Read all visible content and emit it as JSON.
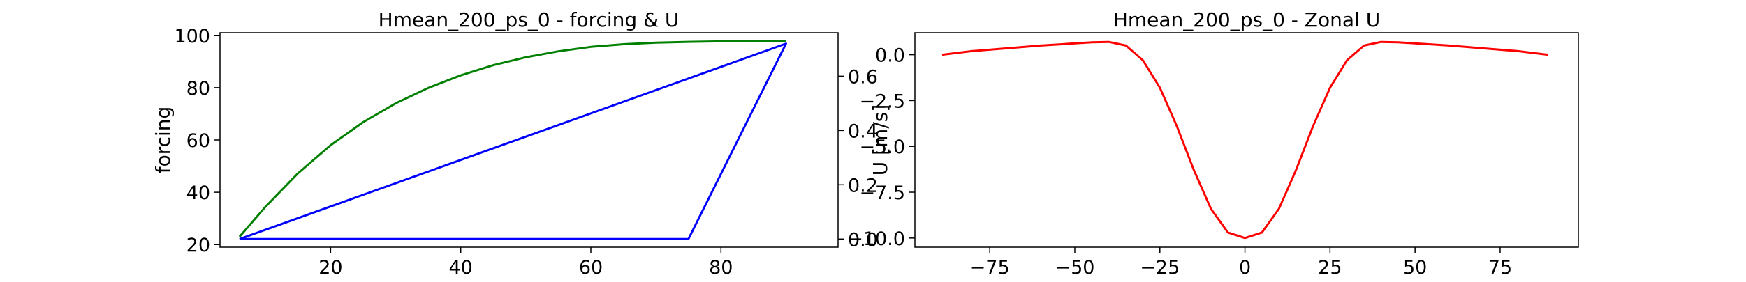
{
  "chart_data": [
    {
      "type": "line",
      "title": "Hmean_200_ps_0 - forcing & U",
      "xlabel": "",
      "ylabel": "forcing",
      "y2label": "U [m/s]",
      "xlim": [
        3,
        98
      ],
      "xticks": [
        20,
        40,
        60,
        80
      ],
      "ylim": [
        19,
        101
      ],
      "yticks": [
        20,
        40,
        60,
        80,
        100
      ],
      "y2lim": [
        -0.03,
        0.76
      ],
      "y2ticks": [
        0.0,
        0.2,
        0.4,
        0.6
      ],
      "grid": false,
      "series": [
        {
          "axis": "left",
          "color": "#008000",
          "x": [
            6,
            10,
            15,
            20,
            25,
            30,
            35,
            40,
            45,
            50,
            55,
            60,
            65,
            70,
            75,
            80,
            85,
            90
          ],
          "y": [
            23.0,
            34.5,
            47.3,
            58.0,
            66.8,
            74.0,
            79.9,
            84.7,
            88.6,
            91.6,
            93.9,
            95.6,
            96.6,
            97.2,
            97.5,
            97.7,
            97.8,
            97.8
          ]
        },
        {
          "axis": "right",
          "color": "#0000ff",
          "x": [
            6,
            75,
            90,
            6
          ],
          "y": [
            0.0,
            0.0,
            0.72,
            0.0
          ]
        }
      ]
    },
    {
      "type": "line",
      "title": "Hmean_200_ps_0 - Zonal U",
      "xlabel": "",
      "ylabel": "",
      "overlay_label": "U [m/s]",
      "xlim": [
        -97,
        98
      ],
      "xticks": [
        -75,
        -50,
        -25,
        0,
        25,
        50,
        75
      ],
      "ylim": [
        -10.5,
        1.2
      ],
      "yticks": [
        0.0,
        -2.5,
        -5.0,
        -7.5,
        -10.0
      ],
      "grid": false,
      "series": [
        {
          "color": "#ff0000",
          "x": [
            -89,
            -80,
            -70,
            -60,
            -50,
            -45,
            -40,
            -35,
            -30,
            -25,
            -20,
            -15,
            -10,
            -5,
            0,
            5,
            10,
            15,
            20,
            25,
            30,
            35,
            40,
            45,
            50,
            60,
            70,
            80,
            89
          ],
          "y": [
            0.0,
            0.2,
            0.35,
            0.5,
            0.62,
            0.68,
            0.7,
            0.5,
            -0.3,
            -1.8,
            -3.9,
            -6.3,
            -8.4,
            -9.7,
            -10.0,
            -9.7,
            -8.4,
            -6.3,
            -3.9,
            -1.8,
            -0.3,
            0.5,
            0.7,
            0.68,
            0.62,
            0.5,
            0.35,
            0.2,
            0.0
          ]
        }
      ]
    }
  ]
}
